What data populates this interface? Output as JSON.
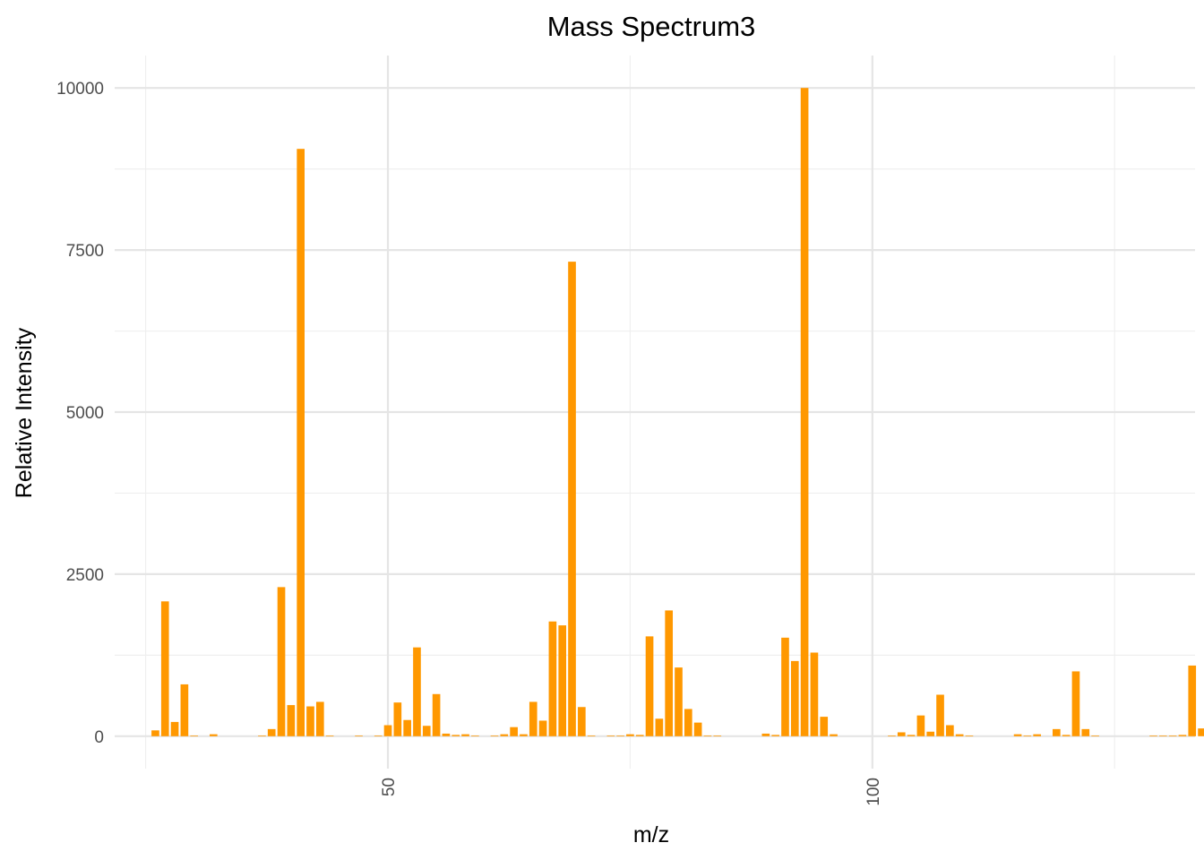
{
  "chart_data": {
    "type": "bar",
    "title": "Mass Spectrum3",
    "xlabel": "m/z",
    "ylabel": "Relative Intensity",
    "xlim": [
      21.8,
      133.3
    ],
    "ylim": [
      -500,
      10500
    ],
    "x_major_ticks": [
      50,
      100
    ],
    "x_minor_ticks": [
      25,
      75,
      125
    ],
    "y_major_ticks": [
      0,
      2500,
      5000,
      7500,
      10000
    ],
    "y_minor_ticks": [
      1250,
      3750,
      6250,
      8750
    ],
    "bar_color": "#FF9800",
    "grid": true,
    "legend": "none",
    "points": [
      {
        "x": 26,
        "y": 90
      },
      {
        "x": 27,
        "y": 2080
      },
      {
        "x": 28,
        "y": 220
      },
      {
        "x": 29,
        "y": 800
      },
      {
        "x": 30,
        "y": 10
      },
      {
        "x": 32,
        "y": 30
      },
      {
        "x": 37,
        "y": 10
      },
      {
        "x": 38,
        "y": 110
      },
      {
        "x": 39,
        "y": 2300
      },
      {
        "x": 40,
        "y": 480
      },
      {
        "x": 41,
        "y": 9060
      },
      {
        "x": 42,
        "y": 460
      },
      {
        "x": 43,
        "y": 530
      },
      {
        "x": 44,
        "y": 10
      },
      {
        "x": 47,
        "y": 10
      },
      {
        "x": 49,
        "y": 10
      },
      {
        "x": 50,
        "y": 170
      },
      {
        "x": 51,
        "y": 520
      },
      {
        "x": 52,
        "y": 250
      },
      {
        "x": 53,
        "y": 1370
      },
      {
        "x": 54,
        "y": 160
      },
      {
        "x": 55,
        "y": 650
      },
      {
        "x": 56,
        "y": 40
      },
      {
        "x": 57,
        "y": 20
      },
      {
        "x": 58,
        "y": 30
      },
      {
        "x": 59,
        "y": 10
      },
      {
        "x": 61,
        "y": 10
      },
      {
        "x": 62,
        "y": 30
      },
      {
        "x": 63,
        "y": 140
      },
      {
        "x": 64,
        "y": 30
      },
      {
        "x": 65,
        "y": 530
      },
      {
        "x": 66,
        "y": 240
      },
      {
        "x": 67,
        "y": 1770
      },
      {
        "x": 68,
        "y": 1710
      },
      {
        "x": 69,
        "y": 7320
      },
      {
        "x": 70,
        "y": 450
      },
      {
        "x": 71,
        "y": 10
      },
      {
        "x": 73,
        "y": 10
      },
      {
        "x": 74,
        "y": 10
      },
      {
        "x": 75,
        "y": 30
      },
      {
        "x": 76,
        "y": 20
      },
      {
        "x": 77,
        "y": 1540
      },
      {
        "x": 78,
        "y": 270
      },
      {
        "x": 79,
        "y": 1940
      },
      {
        "x": 80,
        "y": 1060
      },
      {
        "x": 81,
        "y": 420
      },
      {
        "x": 82,
        "y": 210
      },
      {
        "x": 83,
        "y": 10
      },
      {
        "x": 84,
        "y": 10
      },
      {
        "x": 89,
        "y": 40
      },
      {
        "x": 90,
        "y": 20
      },
      {
        "x": 91,
        "y": 1520
      },
      {
        "x": 92,
        "y": 1160
      },
      {
        "x": 93,
        "y": 10000
      },
      {
        "x": 94,
        "y": 1290
      },
      {
        "x": 95,
        "y": 300
      },
      {
        "x": 96,
        "y": 30
      },
      {
        "x": 102,
        "y": 10
      },
      {
        "x": 103,
        "y": 60
      },
      {
        "x": 104,
        "y": 20
      },
      {
        "x": 105,
        "y": 320
      },
      {
        "x": 106,
        "y": 70
      },
      {
        "x": 107,
        "y": 640
      },
      {
        "x": 108,
        "y": 170
      },
      {
        "x": 109,
        "y": 30
      },
      {
        "x": 110,
        "y": 10
      },
      {
        "x": 115,
        "y": 30
      },
      {
        "x": 116,
        "y": 10
      },
      {
        "x": 117,
        "y": 30
      },
      {
        "x": 119,
        "y": 110
      },
      {
        "x": 120,
        "y": 20
      },
      {
        "x": 121,
        "y": 1000
      },
      {
        "x": 122,
        "y": 110
      },
      {
        "x": 123,
        "y": 10
      },
      {
        "x": 129,
        "y": 10
      },
      {
        "x": 130,
        "y": 10
      },
      {
        "x": 131,
        "y": 10
      },
      {
        "x": 132,
        "y": 20
      },
      {
        "x": 133,
        "y": 1090
      },
      {
        "x": 134,
        "y": 120
      },
      {
        "x": 135,
        "y": 10
      }
    ]
  }
}
